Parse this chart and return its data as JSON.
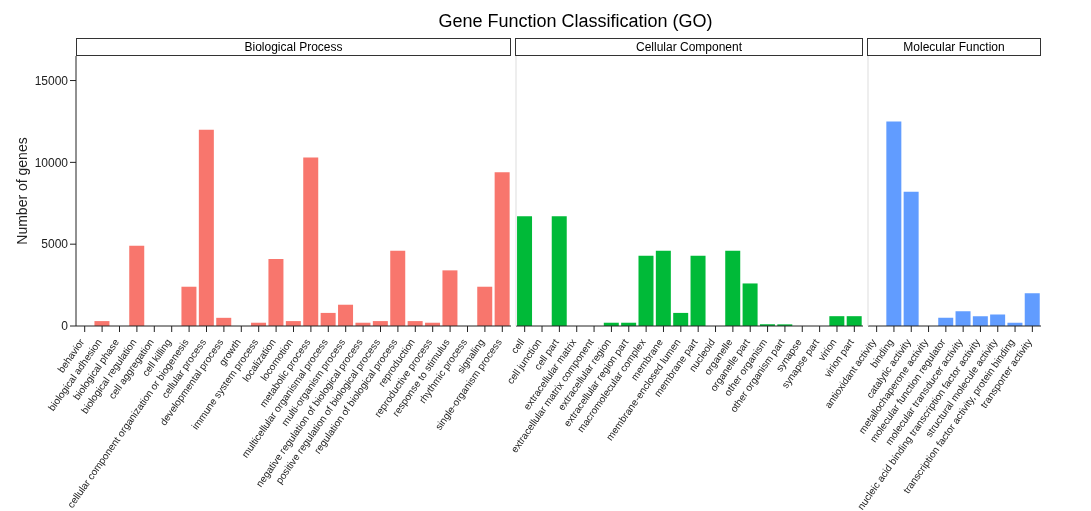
{
  "chart_data": [
    {
      "type": "bar",
      "title": "Gene Function Classification (GO)",
      "subtitle": "Biological Process",
      "ylabel": "Number of genes",
      "color": "#f8766d",
      "ylim": [
        0,
        16500
      ],
      "yticks": [
        0,
        5000,
        10000,
        15000
      ],
      "categories": [
        "behavior",
        "biological adhesion",
        "biological phase",
        "biological regulation",
        "cell aggregation",
        "cell killing",
        "cellular component organization or biogenesis",
        "cellular process",
        "developmental process",
        "growth",
        "immune system process",
        "localization",
        "locomotion",
        "metabolic process",
        "multicellular organismal process",
        "multi-organism process",
        "negative regulation of biological process",
        "positive regulation of biological process",
        "regulation of biological process",
        "reproduction",
        "reproductive process",
        "response to stimulus",
        "rhythmic process",
        "signaling",
        "single-organism process"
      ],
      "values": [
        0,
        300,
        0,
        4900,
        0,
        0,
        2400,
        12000,
        500,
        0,
        200,
        4100,
        300,
        10300,
        800,
        1300,
        200,
        300,
        4600,
        300,
        200,
        3400,
        0,
        2400,
        9400
      ]
    },
    {
      "type": "bar",
      "subtitle": "Cellular Component",
      "color": "#00ba38",
      "ylim": [
        0,
        16500
      ],
      "tick_labels": "x",
      "categories": [
        "cell",
        "cell junction",
        "cell part",
        "extracellular matrix",
        "extracellular matrix component",
        "extracellular region",
        "extracellular region part",
        "macromolecular complex",
        "membrane",
        "membrane-enclosed lumen",
        "membrane part",
        "nucleoid",
        "organelle",
        "organelle part",
        "other organism",
        "other organism part",
        "synapse",
        "synapse part",
        "virion",
        "virion part"
      ],
      "values": [
        6700,
        0,
        6700,
        0,
        0,
        200,
        200,
        4300,
        4600,
        800,
        4300,
        0,
        4600,
        2600,
        100,
        100,
        0,
        0,
        600,
        600
      ]
    },
    {
      "type": "bar",
      "subtitle": "Molecular Function",
      "color": "#619cff",
      "ylim": [
        0,
        16500
      ],
      "tick_labels": "x",
      "categories": [
        "antioxidant activity",
        "binding",
        "catalytic activity",
        "metallochaperone activity",
        "molecular function regulator",
        "molecular transducer activity",
        "nucleic acid binding transcription factor activity",
        "structural molecule activity",
        "transcription factor activity, protein binding",
        "transporter activity"
      ],
      "values": [
        0,
        12500,
        8200,
        0,
        500,
        900,
        600,
        700,
        200,
        2000
      ]
    }
  ]
}
